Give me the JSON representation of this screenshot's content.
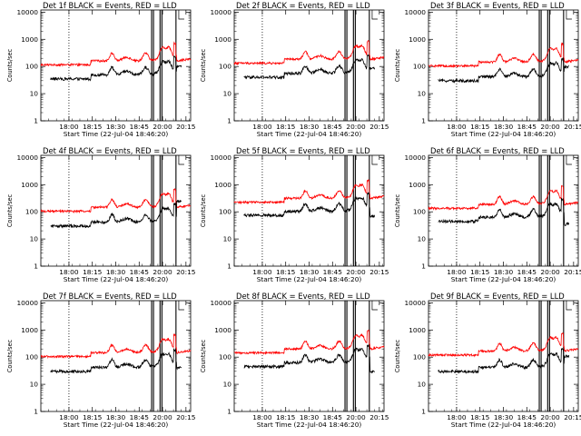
{
  "chart_data": {
    "type": "line",
    "layout": "3x3 grid of panels",
    "x_tick_labels": [
      "18:00",
      "18:15",
      "18:30",
      "18:45",
      "20:00",
      "20:15"
    ],
    "x_axis_label": "Start Time (22-Jul-04 18:46:20)",
    "y_axis_label": "Counts/sec",
    "y_scale": "log",
    "y_range": [
      1,
      12000
    ],
    "y_tick_labels": [
      "1",
      "10",
      "100",
      "1000",
      "10000"
    ],
    "x_range_minutes": [
      -9,
      39
    ],
    "series": [
      {
        "name": "BLACK = Events",
        "color": "#000000"
      },
      {
        "name": "RED = LLD",
        "color": "#ff0000"
      }
    ],
    "panels": [
      {
        "title": "Det 1f BLACK = Events, RED = LLD",
        "event_base": 35,
        "event_end": 100,
        "red_ratio": 3.3,
        "event_start": -6,
        "red_start": -9,
        "vlines": [
          0,
          26.5,
          27.1,
          29.2,
          29.8,
          34.3
        ]
      },
      {
        "title": "Det 2f BLACK = Events, RED = LLD",
        "event_base": 40,
        "event_end": 90,
        "red_ratio": 3.3,
        "event_start": -6,
        "red_start": -9,
        "vlines": [
          0,
          26.5,
          27.1,
          29.2,
          29.8,
          34.3
        ]
      },
      {
        "title": "Det 3f BLACK = Events, RED = LLD",
        "event_base": 30,
        "event_end": 100,
        "red_ratio": 3.5,
        "event_start": -6,
        "red_start": -9,
        "vlines": [
          0,
          26.5,
          27.1,
          29.2,
          29.8,
          34.3
        ]
      },
      {
        "title": "Det 4f BLACK = Events, RED = LLD",
        "event_base": 30,
        "event_end": 250,
        "red_ratio": 3.5,
        "event_start": -6,
        "red_start": -9,
        "vlines": [
          0,
          26.5,
          27.1,
          29.2,
          29.8,
          34.3
        ]
      },
      {
        "title": "Det 5f BLACK = Events, RED = LLD",
        "event_base": 75,
        "event_end": 70,
        "red_ratio": 3.0,
        "event_start": -6,
        "red_start": -9,
        "vlines": [
          0,
          26.5,
          27.1,
          29.2,
          29.8,
          34.3
        ]
      },
      {
        "title": "Det 6f BLACK = Events, RED = LLD",
        "event_base": 45,
        "event_end": 35,
        "red_ratio": 3.0,
        "event_start": -6,
        "red_start": -9,
        "vlines": [
          0,
          26.5,
          27.1,
          29.2,
          29.8,
          34.3
        ]
      },
      {
        "title": "Det 7f BLACK = Events, RED = LLD",
        "event_base": 30,
        "event_end": 40,
        "red_ratio": 3.5,
        "event_start": -6,
        "red_start": -9,
        "vlines": [
          0,
          26.5,
          27.1,
          29.2,
          29.8,
          34.3
        ]
      },
      {
        "title": "Det 8f BLACK = Events, RED = LLD",
        "event_base": 45,
        "event_end": 30,
        "red_ratio": 3.2,
        "event_start": -6,
        "red_start": -9,
        "vlines": [
          0,
          26.5,
          27.1,
          29.2,
          29.8,
          34.3
        ]
      },
      {
        "title": "Det 9f BLACK = Events, RED = LLD",
        "event_base": 30,
        "event_end": 110,
        "red_ratio": 4.0,
        "event_start": -6,
        "red_start": -9,
        "vlines": [
          0,
          26.5,
          27.1,
          29.2,
          29.8,
          34.3
        ]
      }
    ]
  }
}
